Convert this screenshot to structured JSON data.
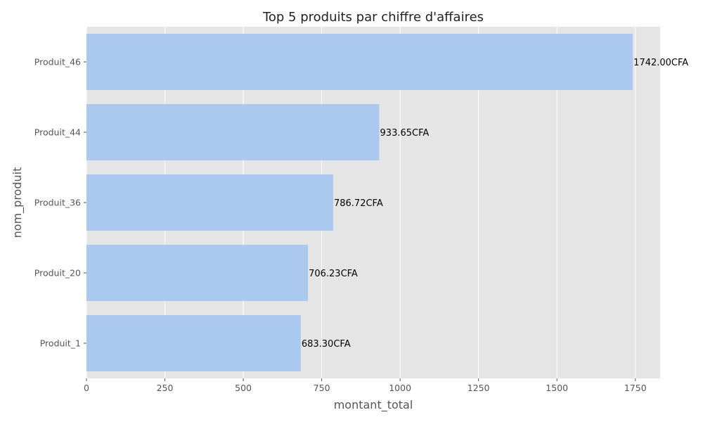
{
  "chart_data": {
    "type": "bar",
    "orientation": "horizontal",
    "title": "Top 5 produits par chiffre d'affaires",
    "xlabel": "montant_total",
    "ylabel": "nom_produit",
    "categories": [
      "Produit_46",
      "Produit_44",
      "Produit_36",
      "Produit_20",
      "Produit_1"
    ],
    "values": [
      1742.0,
      933.65,
      786.72,
      706.23,
      683.3
    ],
    "data_labels": [
      "1742.00CFA",
      "933.65CFA",
      "786.72CFA",
      "706.23CFA",
      "683.30CFA"
    ],
    "xlim": [
      0,
      1829
    ],
    "xticks": [
      0,
      250,
      500,
      750,
      1000,
      1250,
      1500,
      1750
    ],
    "grid": "x",
    "bar_color": "#abc9ee",
    "background_color": "#e5e5e5",
    "grid_color": "#ffffff"
  }
}
